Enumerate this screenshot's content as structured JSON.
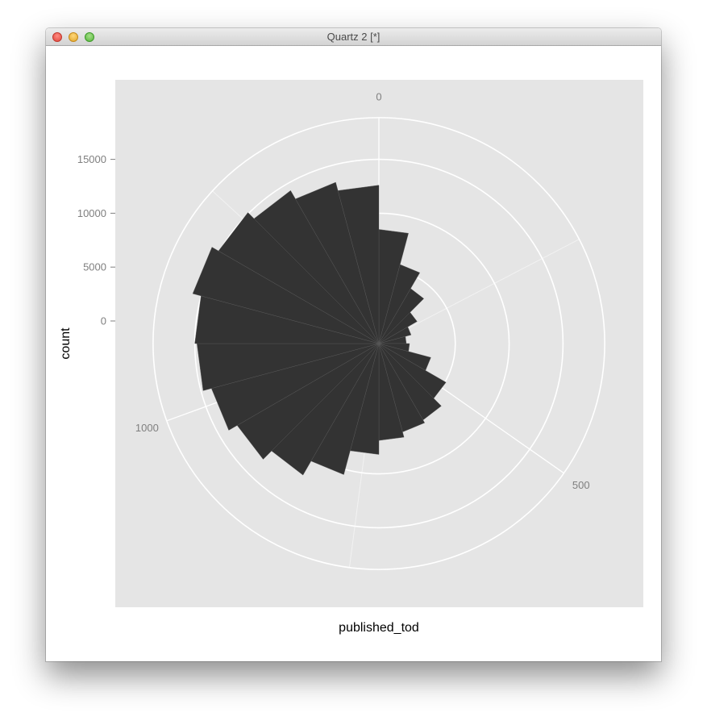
{
  "window": {
    "title": "Quartz 2 [*]"
  },
  "chart_data": {
    "type": "bar",
    "coord": "polar",
    "xlabel": "published_tod",
    "ylabel": "count",
    "y_ticks": [
      "0",
      "5000",
      "10000",
      "15000"
    ],
    "angle_ticks": [
      "0",
      "500",
      "1000"
    ],
    "xlim": [
      0,
      1440
    ],
    "ylim": [
      0,
      17000
    ],
    "bin_width": 60,
    "categories": [
      0,
      60,
      120,
      180,
      240,
      300,
      360,
      420,
      480,
      540,
      600,
      660,
      720,
      780,
      840,
      900,
      960,
      1020,
      1080,
      1140,
      1200,
      1260,
      1320,
      1380
    ],
    "values": [
      8500,
      5500,
      3800,
      2000,
      1000,
      450,
      750,
      2900,
      5100,
      6100,
      6400,
      6900,
      8200,
      10500,
      12000,
      13100,
      14000,
      14800,
      15000,
      15800,
      15100,
      14300,
      13400,
      12600
    ],
    "colors": {
      "bar": "#333333",
      "panel": "#e5e5e5",
      "grid": "#ffffff",
      "axis_text": "#7f7f7f"
    }
  }
}
